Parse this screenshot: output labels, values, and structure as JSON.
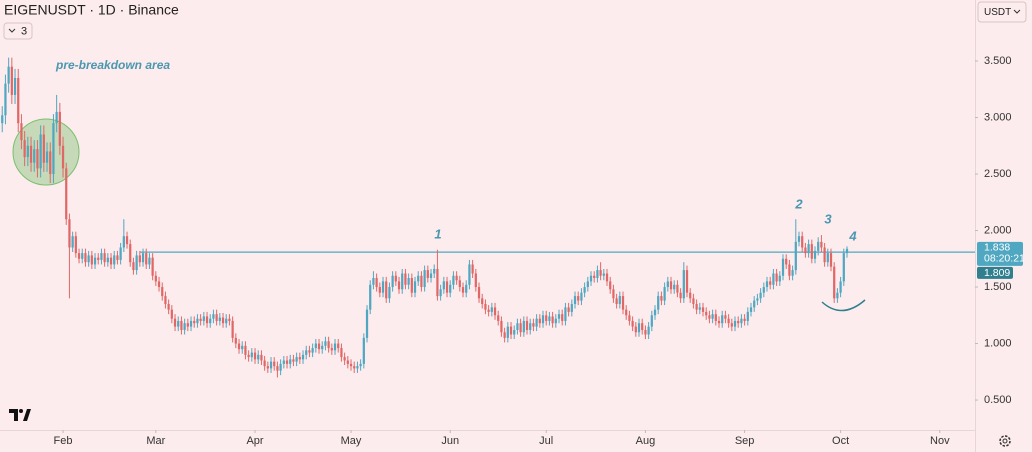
{
  "header": {
    "symbol": "EIGENUSDT · 1D · Binance",
    "indicators": "3",
    "currency": "USDT"
  },
  "chart_data": {
    "type": "candlestick",
    "up_color": "#4fa7c1",
    "down_color": "#e16767",
    "xlim": [
      -0.7,
      304
    ],
    "xticks": [
      {
        "value": 19,
        "label": "Feb"
      },
      {
        "value": 48,
        "label": "Mar"
      },
      {
        "value": 79,
        "label": "Apr"
      },
      {
        "value": 109,
        "label": "May"
      },
      {
        "value": 140,
        "label": "Jun"
      },
      {
        "value": 170,
        "label": "Jul"
      },
      {
        "value": 201,
        "label": "Aug"
      },
      {
        "value": 232,
        "label": "Sep"
      },
      {
        "value": 262,
        "label": "Oct"
      },
      {
        "value": 293,
        "label": "Nov"
      }
    ],
    "ylim": [
      0.235,
      4.04
    ],
    "yticks": [
      {
        "value": 0.5,
        "label": "0.500"
      },
      {
        "value": 1,
        "label": "1.000"
      },
      {
        "value": 1.5,
        "label": "1.500"
      },
      {
        "value": 2,
        "label": "2.000"
      },
      {
        "value": 2.5,
        "label": "2.500"
      },
      {
        "value": 3,
        "label": "3.000"
      },
      {
        "value": 3.5,
        "label": "3.500"
      }
    ],
    "hline": {
      "value": 1.809,
      "label": "1.809",
      "color": "#4fa7c1",
      "tag_color": "#2f7f8f"
    },
    "last_price": {
      "value": 1.838,
      "label": "1.838",
      "countdown": "08:20:21",
      "color": "#4fa7c1"
    },
    "annotations": [
      "pre-breakdown area",
      "1",
      "2",
      "3",
      "4"
    ],
    "open": [
      2.95,
      3.02,
      3.3,
      3.45,
      3.2,
      3.35,
      2.95,
      2.8,
      2.65,
      2.75,
      2.6,
      2.72,
      2.55,
      2.85,
      2.6,
      2.7,
      2.5,
      2.95,
      3.05,
      2.75,
      2.55,
      2.1,
      1.85,
      1.95,
      1.8,
      1.75,
      1.8,
      1.72,
      1.78,
      1.7,
      1.76,
      1.74,
      1.8,
      1.72,
      1.76,
      1.7,
      1.78,
      1.74,
      1.85,
      1.95,
      1.88,
      1.72,
      1.65,
      1.78,
      1.72,
      1.8,
      1.7,
      1.76,
      1.6,
      1.55,
      1.5,
      1.42,
      1.35,
      1.3,
      1.22,
      1.15,
      1.2,
      1.12,
      1.18,
      1.15,
      1.2,
      1.18,
      1.22,
      1.2,
      1.24,
      1.18,
      1.22,
      1.26,
      1.2,
      1.23,
      1.18,
      1.22,
      1.2,
      1.05,
      1.0,
      0.95,
      0.98,
      0.9,
      0.88,
      0.92,
      0.86,
      0.9,
      0.85,
      0.8,
      0.78,
      0.84,
      0.8,
      0.76,
      0.82,
      0.85,
      0.82,
      0.86,
      0.84,
      0.88,
      0.86,
      0.9,
      0.94,
      0.92,
      0.96,
      1.0,
      0.95,
      0.98,
      1.02,
      0.96,
      0.94,
      1.0,
      0.96,
      0.88,
      0.85,
      0.82,
      0.8,
      0.78,
      0.8,
      0.82,
      1.05,
      1.3,
      1.52,
      1.58,
      1.5,
      1.45,
      1.55,
      1.4,
      1.5,
      1.6,
      1.55,
      1.48,
      1.62,
      1.52,
      1.58,
      1.45,
      1.55,
      1.6,
      1.5,
      1.65,
      1.58,
      1.62,
      1.66,
      1.42,
      1.48,
      1.55,
      1.45,
      1.52,
      1.6,
      1.56,
      1.5,
      1.45,
      1.52,
      1.7,
      1.62,
      1.5,
      1.4,
      1.35,
      1.3,
      1.28,
      1.32,
      1.25,
      1.2,
      1.1,
      1.05,
      1.15,
      1.08,
      1.12,
      1.18,
      1.1,
      1.2,
      1.12,
      1.18,
      1.15,
      1.22,
      1.18,
      1.25,
      1.2,
      1.24,
      1.18,
      1.22,
      1.26,
      1.2,
      1.32,
      1.28,
      1.35,
      1.42,
      1.38,
      1.45,
      1.5,
      1.55,
      1.6,
      1.58,
      1.65,
      1.6,
      1.62,
      1.55,
      1.48,
      1.4,
      1.35,
      1.42,
      1.3,
      1.25,
      1.2,
      1.15,
      1.1,
      1.18,
      1.12,
      1.08,
      1.15,
      1.25,
      1.3,
      1.42,
      1.38,
      1.5,
      1.55,
      1.48,
      1.52,
      1.45,
      1.4,
      1.65,
      1.45,
      1.4,
      1.35,
      1.3,
      1.32,
      1.28,
      1.25,
      1.22,
      1.26,
      1.2,
      1.18,
      1.25,
      1.22,
      1.18,
      1.15,
      1.2,
      1.18,
      1.22,
      1.2,
      1.28,
      1.32,
      1.38,
      1.4,
      1.45,
      1.5,
      1.55,
      1.52,
      1.62,
      1.55,
      1.6,
      1.75,
      1.7,
      1.6,
      1.65,
      1.9,
      1.95,
      1.85,
      1.8,
      1.88,
      1.75,
      1.82,
      1.9,
      1.85,
      1.72,
      1.8,
      1.68,
      1.4,
      1.45,
      1.55,
      1.8
    ],
    "high": [
      3.1,
      3.38,
      3.53,
      3.53,
      3.43,
      3.43,
      3.03,
      2.88,
      2.83,
      2.83,
      2.8,
      2.8,
      2.93,
      2.93,
      2.78,
      2.78,
      3.03,
      3.2,
      3.13,
      2.83,
      2.6,
      2.15,
      1.99,
      1.99,
      1.84,
      1.84,
      1.84,
      1.82,
      1.82,
      1.8,
      1.8,
      1.84,
      1.84,
      1.8,
      1.8,
      1.82,
      1.82,
      1.89,
      2.1,
      1.99,
      1.92,
      1.76,
      1.82,
      1.82,
      1.84,
      1.84,
      1.8,
      1.8,
      1.64,
      1.59,
      1.54,
      1.46,
      1.39,
      1.34,
      1.26,
      1.24,
      1.24,
      1.22,
      1.22,
      1.24,
      1.24,
      1.26,
      1.26,
      1.28,
      1.28,
      1.26,
      1.3,
      1.3,
      1.27,
      1.27,
      1.26,
      1.26,
      1.24,
      1.09,
      1.04,
      1.02,
      1.02,
      0.94,
      0.96,
      0.96,
      0.94,
      0.94,
      0.89,
      0.84,
      0.88,
      0.88,
      0.84,
      0.86,
      0.89,
      0.89,
      0.9,
      0.9,
      0.92,
      0.92,
      0.94,
      0.98,
      0.98,
      1.0,
      1.04,
      1.04,
      1.02,
      1.06,
      1.06,
      1.0,
      1.04,
      1.04,
      1.0,
      0.92,
      0.89,
      0.86,
      0.84,
      0.84,
      0.86,
      1.09,
      1.34,
      1.56,
      1.64,
      1.62,
      1.54,
      1.59,
      1.59,
      1.54,
      1.64,
      1.64,
      1.59,
      1.66,
      1.66,
      1.62,
      1.62,
      1.59,
      1.64,
      1.64,
      1.69,
      1.69,
      1.66,
      1.7,
      1.83,
      1.52,
      1.59,
      1.59,
      1.56,
      1.64,
      1.64,
      1.6,
      1.54,
      1.56,
      1.74,
      1.74,
      1.66,
      1.54,
      1.44,
      1.39,
      1.34,
      1.36,
      1.36,
      1.29,
      1.24,
      1.14,
      1.19,
      1.19,
      1.16,
      1.22,
      1.22,
      1.24,
      1.24,
      1.22,
      1.22,
      1.26,
      1.26,
      1.29,
      1.29,
      1.28,
      1.28,
      1.26,
      1.3,
      1.3,
      1.36,
      1.36,
      1.39,
      1.46,
      1.46,
      1.49,
      1.54,
      1.59,
      1.64,
      1.64,
      1.69,
      1.72,
      1.66,
      1.66,
      1.59,
      1.52,
      1.44,
      1.46,
      1.46,
      1.34,
      1.29,
      1.24,
      1.19,
      1.22,
      1.22,
      1.16,
      1.19,
      1.29,
      1.34,
      1.46,
      1.46,
      1.54,
      1.59,
      1.59,
      1.56,
      1.56,
      1.49,
      1.72,
      1.69,
      1.49,
      1.44,
      1.39,
      1.36,
      1.36,
      1.32,
      1.29,
      1.3,
      1.3,
      1.24,
      1.29,
      1.29,
      1.26,
      1.22,
      1.24,
      1.24,
      1.26,
      1.26,
      1.32,
      1.36,
      1.42,
      1.44,
      1.49,
      1.54,
      1.59,
      1.59,
      1.66,
      1.66,
      1.64,
      1.79,
      1.79,
      1.74,
      1.69,
      2.1,
      1.99,
      1.99,
      1.89,
      1.92,
      1.92,
      1.86,
      1.94,
      1.96,
      1.89,
      1.84,
      1.84,
      1.72,
      1.49,
      1.59,
      1.84,
      1.86
    ],
    "low": [
      2.87,
      2.94,
      3.22,
      3.12,
      3.12,
      2.87,
      2.72,
      2.57,
      2.57,
      2.52,
      2.52,
      2.47,
      2.47,
      2.52,
      2.52,
      2.42,
      2.42,
      2.87,
      2.67,
      2.47,
      2.05,
      1.4,
      1.81,
      1.76,
      1.71,
      1.71,
      1.68,
      1.68,
      1.66,
      1.66,
      1.7,
      1.7,
      1.68,
      1.68,
      1.66,
      1.66,
      1.7,
      1.7,
      1.81,
      1.84,
      1.68,
      1.61,
      1.61,
      1.68,
      1.68,
      1.66,
      1.66,
      1.56,
      1.51,
      1.46,
      1.38,
      1.31,
      1.26,
      1.18,
      1.11,
      1.11,
      1.08,
      1.08,
      1.11,
      1.11,
      1.14,
      1.14,
      1.16,
      1.16,
      1.14,
      1.14,
      1.18,
      1.16,
      1.16,
      1.14,
      1.14,
      1.16,
      1.01,
      0.96,
      0.91,
      0.91,
      0.86,
      0.84,
      0.84,
      0.82,
      0.82,
      0.81,
      0.76,
      0.74,
      0.74,
      0.76,
      0.7,
      0.72,
      0.78,
      0.78,
      0.78,
      0.8,
      0.8,
      0.82,
      0.82,
      0.86,
      0.88,
      0.88,
      0.92,
      0.91,
      0.91,
      0.94,
      0.92,
      0.9,
      0.9,
      0.92,
      0.84,
      0.81,
      0.78,
      0.76,
      0.74,
      0.74,
      0.76,
      0.78,
      1.01,
      1.26,
      1.48,
      1.46,
      1.41,
      1.41,
      1.36,
      1.36,
      1.46,
      1.51,
      1.44,
      1.44,
      1.48,
      1.48,
      1.41,
      1.41,
      1.51,
      1.46,
      1.46,
      1.54,
      1.54,
      1.58,
      1.38,
      1.38,
      1.44,
      1.41,
      1.41,
      1.48,
      1.52,
      1.46,
      1.41,
      1.41,
      1.48,
      1.58,
      1.46,
      1.36,
      1.31,
      1.26,
      1.24,
      1.24,
      1.21,
      1.16,
      1.06,
      1.01,
      1.01,
      1.04,
      1.04,
      1.08,
      1.06,
      1.06,
      1.08,
      1.08,
      1.11,
      1.11,
      1.14,
      1.14,
      1.16,
      1.16,
      1.14,
      1.14,
      1.18,
      1.16,
      1.16,
      1.24,
      1.24,
      1.31,
      1.34,
      1.34,
      1.41,
      1.46,
      1.51,
      1.54,
      1.54,
      1.56,
      1.56,
      1.51,
      1.44,
      1.36,
      1.31,
      1.31,
      1.26,
      1.21,
      1.16,
      1.11,
      1.06,
      1.06,
      1.08,
      1.04,
      1.04,
      1.11,
      1.21,
      1.26,
      1.34,
      1.34,
      1.46,
      1.44,
      1.44,
      1.41,
      1.36,
      1.36,
      1.41,
      1.36,
      1.31,
      1.26,
      1.26,
      1.24,
      1.21,
      1.18,
      1.18,
      1.16,
      1.14,
      1.14,
      1.18,
      1.14,
      1.11,
      1.11,
      1.14,
      1.14,
      1.16,
      1.16,
      1.24,
      1.28,
      1.34,
      1.36,
      1.41,
      1.46,
      1.48,
      1.48,
      1.51,
      1.51,
      1.56,
      1.66,
      1.56,
      1.56,
      1.61,
      1.86,
      1.81,
      1.76,
      1.76,
      1.71,
      1.71,
      1.78,
      1.81,
      1.68,
      1.68,
      1.64,
      1.36,
      1.36,
      1.41,
      1.51,
      1.76
    ],
    "close": [
      3.02,
      3.3,
      3.45,
      3.2,
      3.35,
      2.95,
      2.8,
      2.65,
      2.75,
      2.6,
      2.72,
      2.55,
      2.85,
      2.6,
      2.7,
      2.5,
      2.95,
      3.05,
      2.75,
      2.55,
      2.1,
      1.85,
      1.95,
      1.8,
      1.75,
      1.8,
      1.72,
      1.78,
      1.7,
      1.76,
      1.74,
      1.8,
      1.72,
      1.76,
      1.7,
      1.78,
      1.74,
      1.85,
      1.95,
      1.88,
      1.72,
      1.65,
      1.78,
      1.72,
      1.8,
      1.7,
      1.76,
      1.6,
      1.55,
      1.5,
      1.42,
      1.35,
      1.3,
      1.22,
      1.15,
      1.2,
      1.12,
      1.18,
      1.15,
      1.2,
      1.18,
      1.22,
      1.2,
      1.24,
      1.18,
      1.22,
      1.26,
      1.2,
      1.23,
      1.18,
      1.22,
      1.2,
      1.05,
      1.0,
      0.95,
      0.98,
      0.9,
      0.88,
      0.92,
      0.86,
      0.9,
      0.85,
      0.8,
      0.78,
      0.84,
      0.8,
      0.76,
      0.82,
      0.85,
      0.82,
      0.86,
      0.84,
      0.88,
      0.86,
      0.9,
      0.94,
      0.92,
      0.96,
      1.0,
      0.95,
      0.98,
      1.02,
      0.96,
      0.94,
      1.0,
      0.96,
      0.88,
      0.85,
      0.82,
      0.8,
      0.78,
      0.8,
      0.82,
      1.05,
      1.3,
      1.52,
      1.58,
      1.5,
      1.45,
      1.55,
      1.4,
      1.5,
      1.6,
      1.55,
      1.48,
      1.62,
      1.52,
      1.58,
      1.45,
      1.55,
      1.6,
      1.5,
      1.65,
      1.58,
      1.62,
      1.66,
      1.42,
      1.48,
      1.55,
      1.45,
      1.52,
      1.6,
      1.56,
      1.5,
      1.45,
      1.52,
      1.7,
      1.62,
      1.5,
      1.4,
      1.35,
      1.3,
      1.28,
      1.32,
      1.25,
      1.2,
      1.1,
      1.05,
      1.15,
      1.08,
      1.12,
      1.18,
      1.1,
      1.2,
      1.12,
      1.18,
      1.15,
      1.22,
      1.18,
      1.25,
      1.2,
      1.24,
      1.18,
      1.22,
      1.26,
      1.2,
      1.32,
      1.28,
      1.35,
      1.42,
      1.38,
      1.45,
      1.5,
      1.55,
      1.6,
      1.58,
      1.65,
      1.6,
      1.62,
      1.55,
      1.48,
      1.4,
      1.35,
      1.42,
      1.3,
      1.25,
      1.2,
      1.15,
      1.1,
      1.18,
      1.12,
      1.08,
      1.15,
      1.25,
      1.3,
      1.42,
      1.38,
      1.5,
      1.55,
      1.48,
      1.52,
      1.45,
      1.4,
      1.65,
      1.45,
      1.4,
      1.35,
      1.3,
      1.32,
      1.28,
      1.25,
      1.22,
      1.26,
      1.2,
      1.18,
      1.25,
      1.22,
      1.18,
      1.15,
      1.2,
      1.18,
      1.22,
      1.2,
      1.28,
      1.32,
      1.38,
      1.4,
      1.45,
      1.5,
      1.55,
      1.52,
      1.62,
      1.55,
      1.6,
      1.75,
      1.7,
      1.6,
      1.65,
      1.9,
      1.95,
      1.85,
      1.8,
      1.88,
      1.75,
      1.82,
      1.9,
      1.85,
      1.72,
      1.8,
      1.68,
      1.4,
      1.45,
      1.55,
      1.8,
      1.838
    ]
  }
}
